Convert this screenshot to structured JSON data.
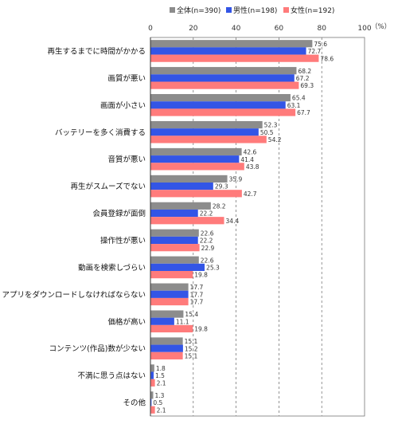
{
  "chart_data": {
    "type": "bar",
    "orientation": "horizontal",
    "unit": "（%）",
    "xlim": [
      0,
      100
    ],
    "xticks": [
      0,
      20,
      40,
      60,
      80,
      100
    ],
    "grid": "dashed-vertical",
    "legend_position": "top",
    "categories": [
      "再生するまでに時間がかかる",
      "画質が悪い",
      "画面が小さい",
      "バッテリーを多く消費する",
      "音質が悪い",
      "再生がスムーズでない",
      "会員登録が面倒",
      "操作性が悪い",
      "動画を検索しづらい",
      "アプリをダウンロードしなければならない",
      "価格が高い",
      "コンテンツ(作品)数が少ない",
      "不満に思う点はない",
      "その他"
    ],
    "series": [
      {
        "name": "全体(n=390)",
        "color": "#8c8c8c",
        "values": [
          75.6,
          68.2,
          65.4,
          52.3,
          42.6,
          35.9,
          28.2,
          22.6,
          22.6,
          17.7,
          15.4,
          15.1,
          1.8,
          1.3
        ],
        "labels": [
          "75.6",
          "68.2",
          "65.4",
          "52.3",
          "42.6",
          "35.9",
          "28.2",
          "22.6",
          "22.6",
          "17.7",
          "15.4",
          "15.1",
          "1.8",
          "1.3"
        ]
      },
      {
        "name": "男性(n=198)",
        "color": "#3355e6",
        "values": [
          72.7,
          67.2,
          63.1,
          50.5,
          41.4,
          29.3,
          22.2,
          22.2,
          25.3,
          17.7,
          11.1,
          15.2,
          1.5,
          0.5
        ],
        "labels": [
          "72.7",
          "67.2",
          "63.1",
          "50.5",
          "41.4",
          "29.3",
          "22.2",
          "22.2",
          "25.3",
          "17.7",
          "11.1",
          "15.2",
          "1.5",
          "0.5"
        ]
      },
      {
        "name": "女性(n=192)",
        "color": "#ff7b7b",
        "values": [
          78.6,
          69.3,
          67.7,
          54.2,
          43.8,
          42.7,
          34.4,
          22.9,
          19.8,
          17.7,
          19.8,
          15.1,
          2.1,
          2.1
        ],
        "labels": [
          "78.6",
          "69.3",
          "67.7",
          "54.2",
          "43.8",
          "42.7",
          "34.4",
          "22.9",
          "19.8",
          "17.7",
          "19.8",
          "15.1",
          "2.1",
          "2.1"
        ]
      }
    ]
  }
}
